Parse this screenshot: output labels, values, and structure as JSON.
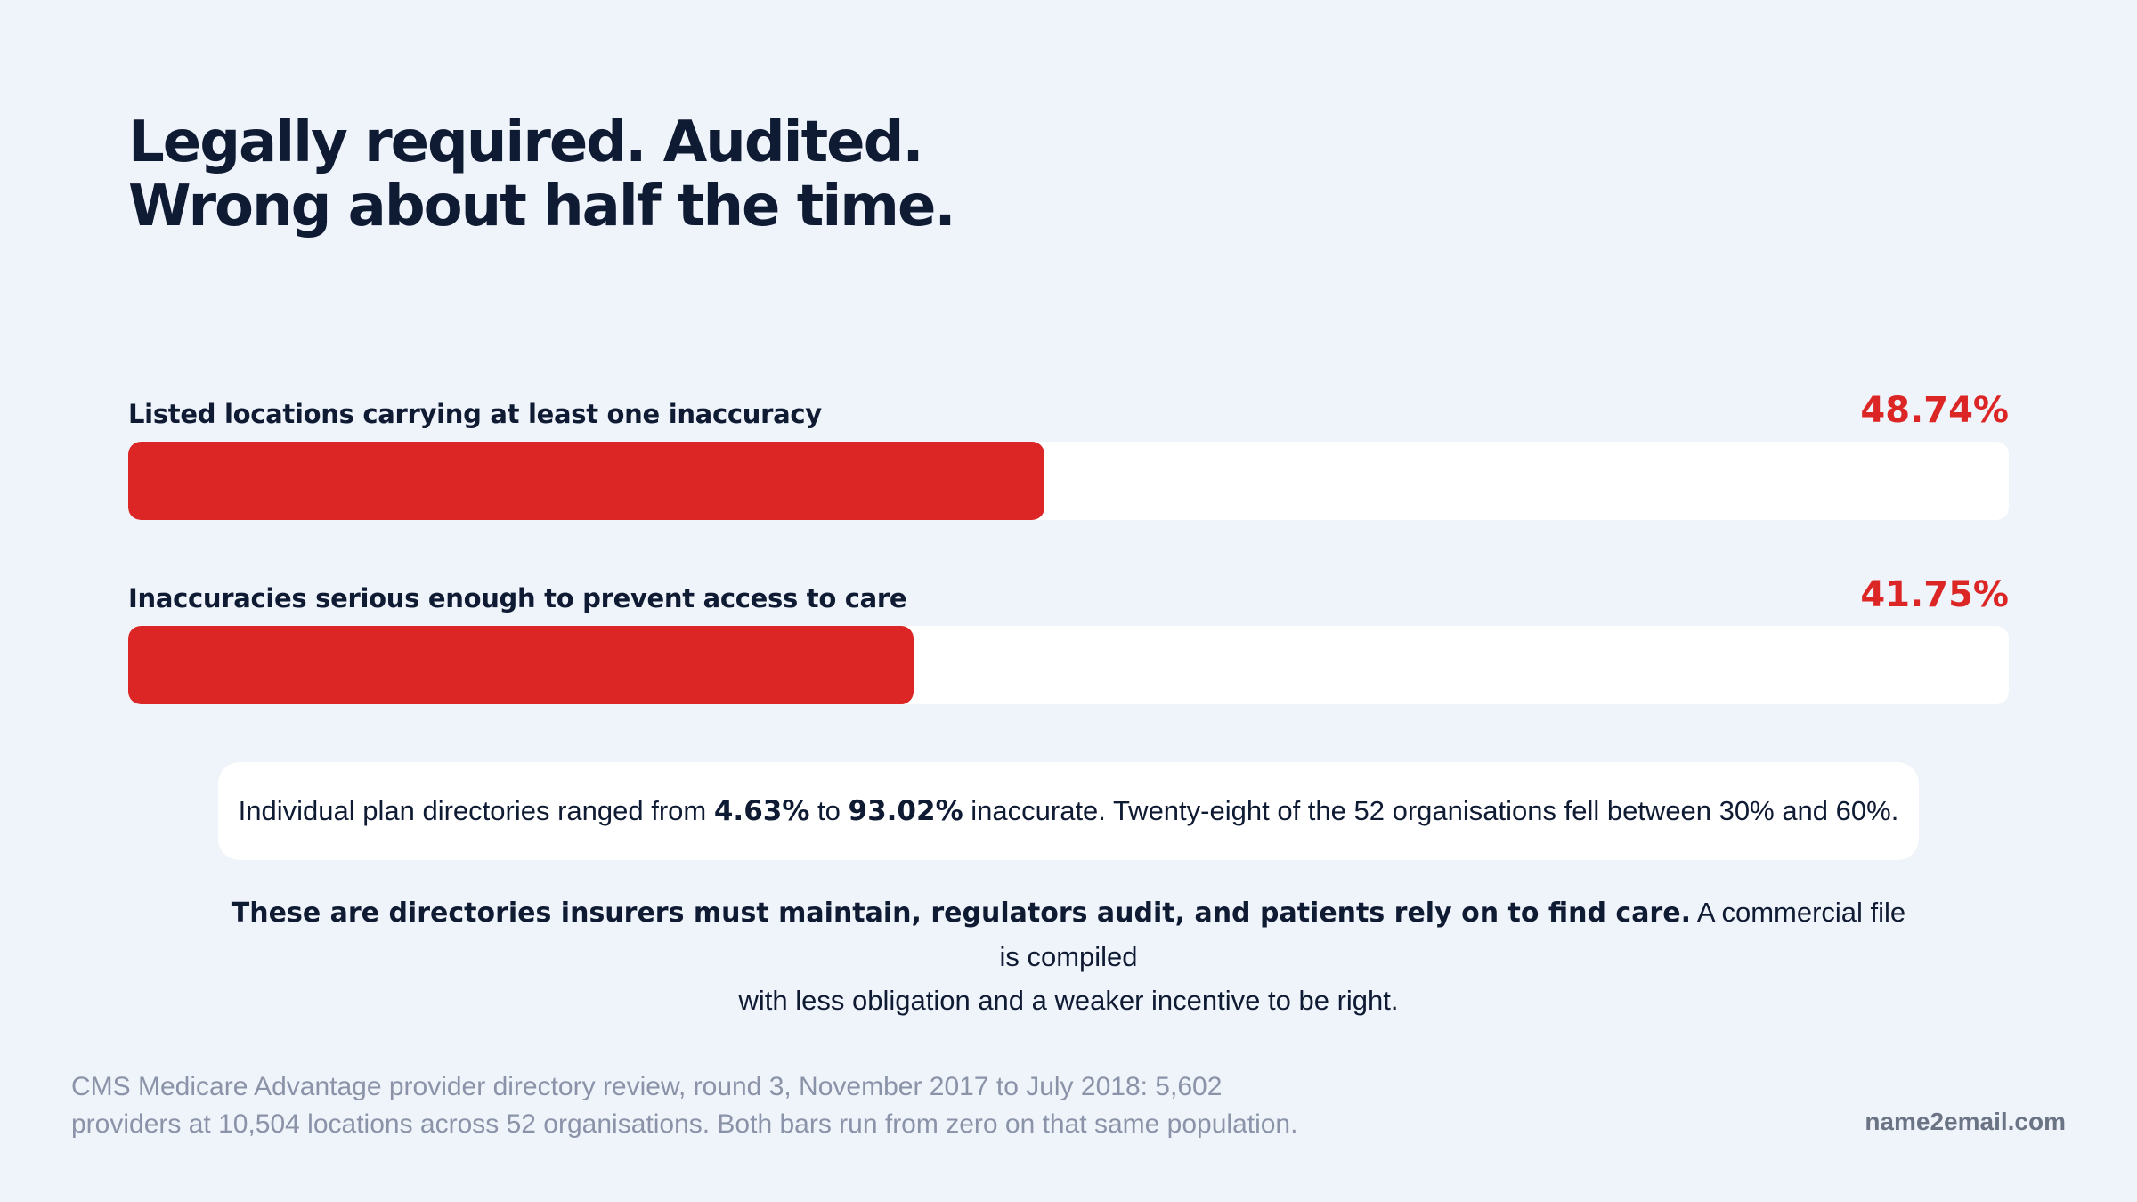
{
  "headline": {
    "line1": "Legally required. Audited.",
    "line2": "Wrong about half the time."
  },
  "chart_data": {
    "type": "bar",
    "orientation": "horizontal",
    "xlim": [
      0,
      100
    ],
    "unit": "%",
    "categories": [
      "Listed locations carrying at least one inaccuracy",
      "Inaccuracies serious enough to prevent access to care"
    ],
    "values": [
      48.74,
      41.75
    ],
    "value_labels": [
      "48.74%",
      "41.75%"
    ],
    "bar_color": "#dc2626",
    "track_color": "#ffffff"
  },
  "range_note": {
    "prefix": "Individual plan directories ranged from",
    "low": "4.63%",
    "joiner": "to",
    "high": "93.02%",
    "suffix": "inaccurate. Twenty-eight of the 52 organisations fell between 30% and 60%."
  },
  "claim": {
    "bold": "These are directories insurers must maintain, regulators audit, and patients rely on to find care.",
    "line1_rest": "A commercial file is compiled",
    "line2": "with less obligation and a weaker incentive to be right."
  },
  "footer": {
    "source_line1": "CMS Medicare Advantage provider directory review, round 3, November 2017 to July 2018: 5,602",
    "source_line2": "providers at 10,504 locations across 52 organisations. Both bars run from zero on that same population.",
    "brand": "name2email.com"
  }
}
